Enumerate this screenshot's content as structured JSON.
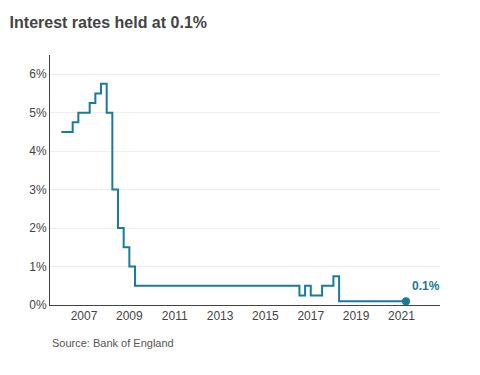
{
  "chart_data": {
    "type": "line",
    "title": "Interest rates held at 0.1%",
    "source": "Source: Bank of England",
    "annotations": [
      "0.1%"
    ],
    "color": "#1a7a9a",
    "xlim": [
      2005.5,
      2022.7
    ],
    "ylim": [
      0,
      6.5
    ],
    "xticks": [
      2007,
      2009,
      2011,
      2013,
      2015,
      2017,
      2019,
      2021
    ],
    "yticks": [
      {
        "value": 0,
        "label": "0%"
      },
      {
        "value": 1,
        "label": "1%"
      },
      {
        "value": 2,
        "label": "2%"
      },
      {
        "value": 3,
        "label": "3%"
      },
      {
        "value": 4,
        "label": "4%"
      },
      {
        "value": 5,
        "label": "5%"
      },
      {
        "value": 6,
        "label": "6%"
      }
    ],
    "grid": "y",
    "dot": {
      "x": 2021.2,
      "y": 0.1
    },
    "x": [
      2006.0,
      2006.5,
      2006.5,
      2006.75,
      2006.75,
      2007.25,
      2007.25,
      2007.5,
      2007.5,
      2007.75,
      2007.75,
      2008.0,
      2008.0,
      2008.25,
      2008.25,
      2008.5,
      2008.5,
      2008.75,
      2008.75,
      2009.0,
      2009.0,
      2009.25,
      2009.25,
      2009.5,
      2009.5,
      2016.5,
      2016.5,
      2016.75,
      2016.75,
      2017.0,
      2017.0,
      2017.5,
      2017.5,
      2018.0,
      2018.0,
      2018.25,
      2018.25,
      2020.3,
      2020.3,
      2021.2
    ],
    "values": [
      4.5,
      4.5,
      4.75,
      4.75,
      5.0,
      5.0,
      5.25,
      5.25,
      5.5,
      5.5,
      5.75,
      5.75,
      5.0,
      5.0,
      3.0,
      3.0,
      2.0,
      2.0,
      1.5,
      1.5,
      1.0,
      1.0,
      0.5,
      0.5,
      0.5,
      0.5,
      0.25,
      0.25,
      0.5,
      0.5,
      0.25,
      0.25,
      0.5,
      0.5,
      0.75,
      0.75,
      0.1,
      0.1,
      0.1,
      0.1
    ]
  }
}
